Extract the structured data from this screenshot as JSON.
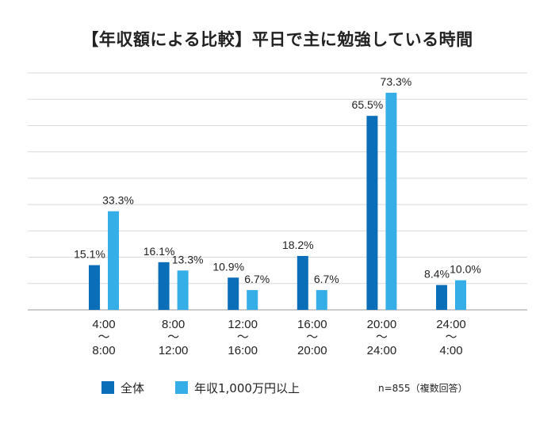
{
  "chart_data": {
    "type": "bar",
    "title": "【年収額による比較】平日で主に勉強している時間",
    "categories": [
      [
        "4:00",
        "〜",
        "8:00"
      ],
      [
        "8:00",
        "〜",
        "12:00"
      ],
      [
        "12:00",
        "〜",
        "16:00"
      ],
      [
        "16:00",
        "〜",
        "20:00"
      ],
      [
        "20:00",
        "〜",
        "24:00"
      ],
      [
        "24:00",
        "〜",
        "4:00"
      ]
    ],
    "series": [
      {
        "name": "全体",
        "values": [
          15.1,
          16.1,
          10.9,
          18.2,
          65.5,
          8.4
        ],
        "labels": [
          "15.1%",
          "16.1%",
          "10.9%",
          "18.2%",
          "65.5%",
          "8.4%"
        ],
        "color": "#0a6fb8"
      },
      {
        "name": "年収1,000万円以上",
        "values": [
          33.3,
          13.3,
          6.7,
          6.7,
          73.3,
          10.0
        ],
        "labels": [
          "33.3%",
          "13.3%",
          "6.7%",
          "6.7%",
          "73.3%",
          "10.0%"
        ],
        "color": "#35aee8"
      }
    ],
    "ylim": [
      0,
      80
    ],
    "grid": true,
    "legend": "bottom",
    "note": "n=855（複数回答）"
  }
}
